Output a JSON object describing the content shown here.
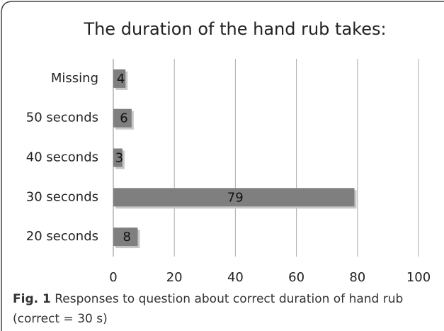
{
  "chart_data": {
    "type": "hbar",
    "title": "The duration of the hand rub takes:",
    "categories": [
      "Missing",
      "50 seconds",
      "40 seconds",
      "30 seconds",
      "20 seconds"
    ],
    "values": [
      4,
      6,
      3,
      79,
      8
    ],
    "color": "#7f7f7f",
    "xlim": [
      0,
      100
    ],
    "xticks": [
      0,
      20,
      40,
      60,
      80,
      100
    ],
    "grid": true
  },
  "caption": {
    "label": "Fig. 1",
    "text": "Responses to question about correct duration of hand rub (correct = 30 s)"
  }
}
